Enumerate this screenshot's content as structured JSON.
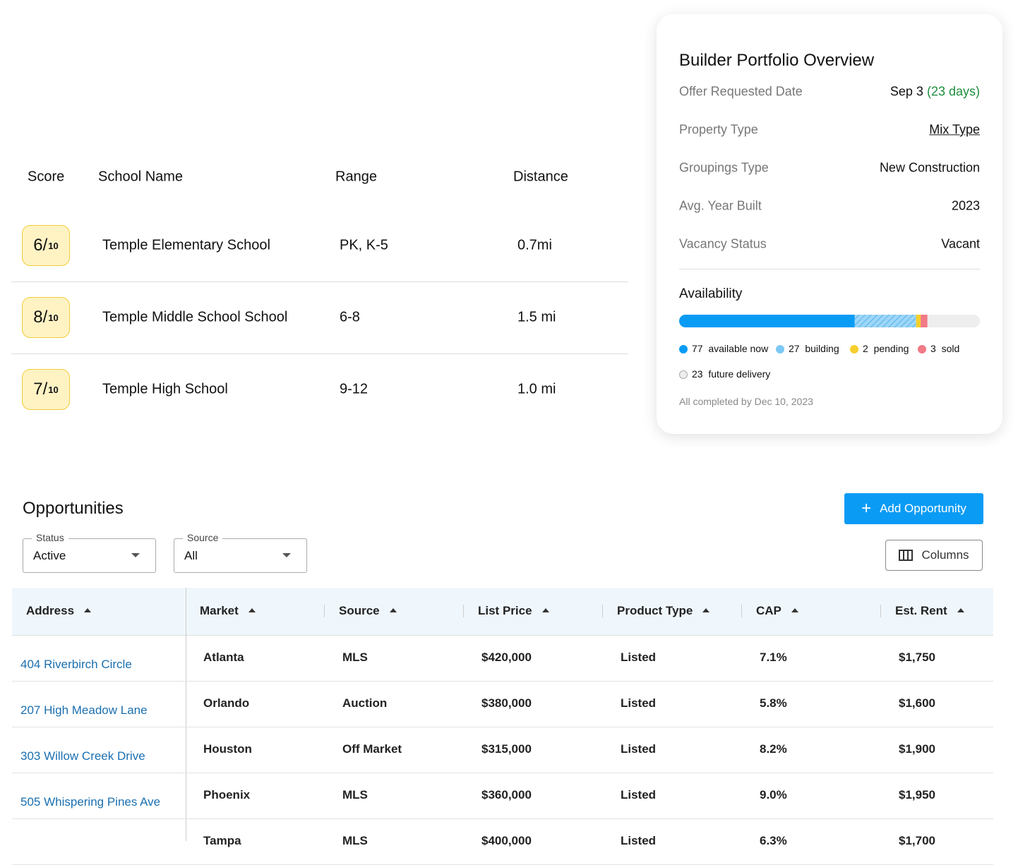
{
  "schools": {
    "headers": [
      "Score",
      "School Name",
      "Range",
      "Distance"
    ],
    "rows": [
      {
        "score": 6,
        "max": 10,
        "name": "Temple Elementary School",
        "range": "PK, K-5",
        "distance": "0.7mi"
      },
      {
        "score": 8,
        "max": 10,
        "name": "Temple Middle School School",
        "range": "6-8",
        "distance": "1.5 mi"
      },
      {
        "score": 7,
        "max": 10,
        "name": "Temple High School",
        "range": "9-12",
        "distance": "1.0 mi"
      }
    ]
  },
  "overview": {
    "title": "Builder Portfolio Overview",
    "fields": [
      {
        "label": "Offer Requested Date",
        "value": "Sep 3",
        "note": "(23 days)"
      },
      {
        "label": "Property Type",
        "value": "Mix Type"
      },
      {
        "label": "Groupings Type",
        "value": "New Construction"
      },
      {
        "label": "Avg. Year Built",
        "value": "2023"
      },
      {
        "label": "Vacancy Status",
        "value": "Vacant"
      }
    ],
    "availability": {
      "title": "Availability",
      "segments": [
        {
          "count": 77,
          "label": "available now",
          "color": "#0a9bf5"
        },
        {
          "count": 27,
          "label": "building",
          "color": "#7cc8f5"
        },
        {
          "count": 2,
          "label": "pending",
          "color": "#f5cf2b"
        },
        {
          "count": 3,
          "label": "sold",
          "color": "#f07a86"
        },
        {
          "count": 23,
          "label": "future delivery",
          "color": "#eeeeee"
        }
      ],
      "footnote": "All completed by Dec 10, 2023"
    }
  },
  "opportunities": {
    "title": "Opportunities",
    "add_button": "Add Opportunity",
    "columns_button": "Columns",
    "filters": [
      {
        "label": "Status",
        "value": "Active"
      },
      {
        "label": "Source",
        "value": "All"
      }
    ],
    "headers": [
      "Address",
      "Market",
      "Source",
      "List Price",
      "Product Type",
      "CAP",
      "Est. Rent"
    ],
    "rows": [
      [
        "404 Riverbirch Circle",
        "Atlanta",
        "MLS",
        "$420,000",
        "Listed",
        "7.1%",
        "$1,750"
      ],
      [
        "207 High Meadow Lane",
        "Orlando",
        "Auction",
        "$380,000",
        "Listed",
        "5.8%",
        "$1,600"
      ],
      [
        "303 Willow Creek Drive",
        "Houston",
        "Off Market",
        "$315,000",
        "Listed",
        "8.2%",
        "$1,900"
      ],
      [
        "505 Whispering Pines Ave",
        "Phoenix",
        "MLS",
        "$360,000",
        "Listed",
        "9.0%",
        "$1,950"
      ],
      [
        "",
        "Tampa",
        "MLS",
        "$400,000",
        "Listed",
        "6.3%",
        "$1,700"
      ]
    ]
  }
}
